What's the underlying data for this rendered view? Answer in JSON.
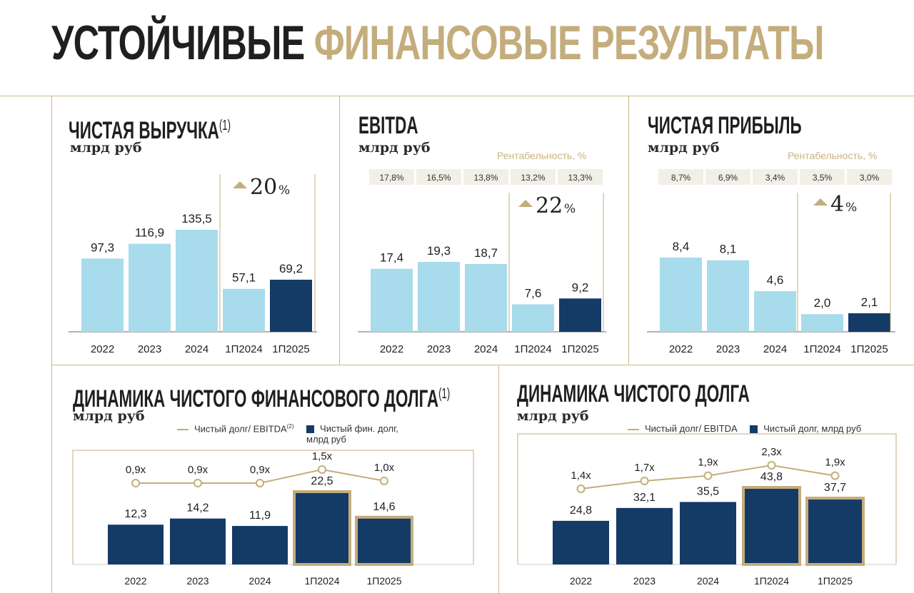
{
  "page_title": {
    "part1": "УСТОЙЧИВЫЕ",
    "part2": "ФИНАНСОВЫЕ РЕЗУЛЬТАТЫ"
  },
  "colors": {
    "light_bar": "#a8dbec",
    "dark_bar": "#143b66",
    "gold": "#c4ad7c",
    "badge_bg": "#f2efe6"
  },
  "chart_data": [
    {
      "id": "net_revenue",
      "type": "bar",
      "title": "ЧИСТАЯ ВЫРУЧКА",
      "footnote": "(1)",
      "unit": "млрд руб",
      "categories": [
        "2022",
        "2023",
        "2024",
        "1П2024",
        "1П2025"
      ],
      "values": [
        97.3,
        116.9,
        135.5,
        57.1,
        69.2
      ],
      "labels": [
        "97,3",
        "116,9",
        "135,5",
        "57,1",
        "69,2"
      ],
      "highlight_index": 4,
      "growth": {
        "value": "20",
        "unit": "%"
      }
    },
    {
      "id": "ebitda",
      "type": "bar",
      "title": "EBITDA",
      "unit": "млрд руб",
      "margin_label": "Рентабельность, %",
      "margins": [
        "17,8%",
        "16,5%",
        "13,8%",
        "13,2%",
        "13,3%"
      ],
      "categories": [
        "2022",
        "2023",
        "2024",
        "1П2024",
        "1П2025"
      ],
      "values": [
        17.4,
        19.3,
        18.7,
        7.6,
        9.2
      ],
      "labels": [
        "17,4",
        "19,3",
        "18,7",
        "7,6",
        "9,2"
      ],
      "highlight_index": 4,
      "growth": {
        "value": "22",
        "unit": "%"
      }
    },
    {
      "id": "net_profit",
      "type": "bar",
      "title": "ЧИСТАЯ ПРИБЫЛЬ",
      "unit": "млрд руб",
      "margin_label": "Рентабельность, %",
      "margins": [
        "8,7%",
        "6,9%",
        "3,4%",
        "3,5%",
        "3,0%"
      ],
      "categories": [
        "2022",
        "2023",
        "2024",
        "1П2024",
        "1П2025"
      ],
      "values": [
        8.4,
        8.1,
        4.6,
        2.0,
        2.1
      ],
      "labels": [
        "8,4",
        "8,1",
        "4,6",
        "2,0",
        "2,1"
      ],
      "highlight_index": 4,
      "growth": {
        "value": "4",
        "unit": "%"
      }
    },
    {
      "id": "net_fin_debt",
      "type": "bar+line",
      "title": "ДИНАМИКА ЧИСТОГО ФИНАНСОВОГО ДОЛГА",
      "footnote": "(1)",
      "unit": "млрд руб",
      "legend_line": "Чистый долг/ EBITDA",
      "legend_line_note": "(2)",
      "legend_bar": "Чистый фин. долг, млрд руб",
      "categories": [
        "2022",
        "2023",
        "2024",
        "1П2024",
        "1П2025"
      ],
      "series": [
        {
          "name": "Чистый фин. долг, млрд руб",
          "values": [
            12.3,
            14.2,
            11.9,
            22.5,
            14.6
          ],
          "labels": [
            "12,3",
            "14,2",
            "11,9",
            "22,5",
            "14,6"
          ]
        },
        {
          "name": "Чистый долг/ EBITDA",
          "values": [
            0.9,
            0.9,
            0.9,
            1.5,
            1.0
          ],
          "labels": [
            "0,9x",
            "0,9x",
            "0,9x",
            "1,5x",
            "1,0x"
          ]
        }
      ],
      "outlined_indices": [
        3,
        4
      ]
    },
    {
      "id": "net_debt",
      "type": "bar+line",
      "title": "ДИНАМИКА ЧИСТОГО ДОЛГА",
      "unit": "млрд руб",
      "legend_line": "Чистый долг/ EBITDA",
      "legend_bar": "Чистый долг, млрд руб",
      "categories": [
        "2022",
        "2023",
        "2024",
        "1П2024",
        "1П2025"
      ],
      "series": [
        {
          "name": "Чистый долг, млрд руб",
          "values": [
            24.8,
            32.1,
            35.5,
            43.8,
            37.7
          ],
          "labels": [
            "24,8",
            "32,1",
            "35,5",
            "43,8",
            "37,7"
          ]
        },
        {
          "name": "Чистый долг/ EBITDA",
          "values": [
            1.4,
            1.7,
            1.9,
            2.3,
            1.9
          ],
          "labels": [
            "1,4x",
            "1,7x",
            "1,9x",
            "2,3x",
            "1,9x"
          ]
        }
      ],
      "outlined_indices": [
        3,
        4
      ]
    }
  ]
}
